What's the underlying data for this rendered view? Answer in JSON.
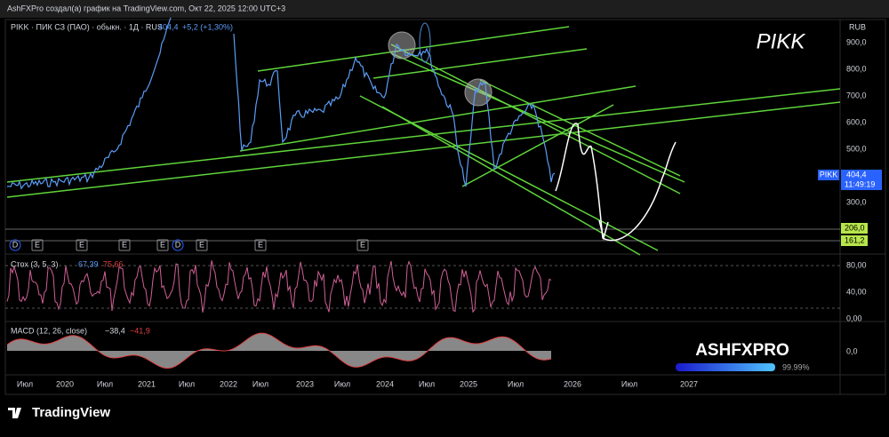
{
  "header": {
    "title": "AshFXPro создал(а) график на TradingView.com, Окт 22, 2025 12:00 UTC+3"
  },
  "legend": {
    "symbol": "PIKK · ПИК СЗ (ПАО) · обыкн. · 1Д · RUS",
    "price": "404,4",
    "change": "+5,2 (+1,30%)"
  },
  "scale": {
    "currency": "RUB",
    "price_ticks": [
      "900,0",
      "800,0",
      "700,0",
      "600,0",
      "500,0",
      "300,0"
    ],
    "last": {
      "ticker": "PIKK",
      "price": "404,4",
      "time": "11:49:19"
    },
    "levels": [
      "206,0",
      "161,2"
    ]
  },
  "events": [
    "D",
    "E",
    "E",
    "E",
    "E",
    "D",
    "E",
    "E",
    "E"
  ],
  "stoch": {
    "label": "Стох (3, 5, 3)",
    "k": "67,39",
    "d": "75,66",
    "ticks": [
      "80,00",
      "40,00",
      "0,00"
    ]
  },
  "macd": {
    "label": "MACD (12, 26, close)",
    "macd": "−38,4",
    "signal": "−41,9",
    "ticks": [
      "0,0"
    ]
  },
  "time_labels": [
    "Июл",
    "2020",
    "Июл",
    "2021",
    "Июл",
    "2022",
    "Июл",
    "2023",
    "Июл",
    "2024",
    "Июл",
    "2025",
    "Июл",
    "2026",
    "Июл",
    "2027"
  ],
  "watermark": "PIKK",
  "brand": {
    "name": "ASHFXPRO",
    "progress": "99.99%"
  },
  "footer": {
    "logo": "TradingView"
  }
}
